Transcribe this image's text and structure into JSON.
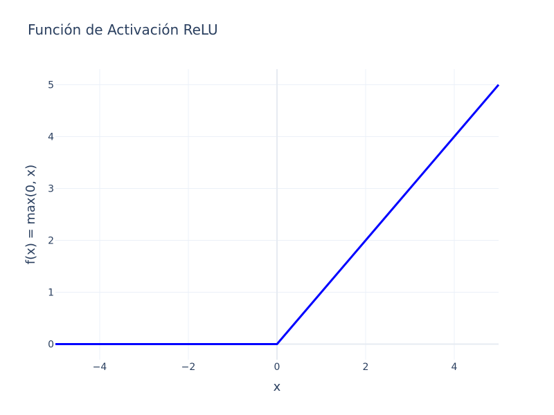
{
  "chart_data": {
    "type": "line",
    "title": "Función de Activación ReLU",
    "xlabel": "x",
    "ylabel": "f(x) = max(0, x)",
    "xlim": [
      -5,
      5
    ],
    "ylim": [
      -0.3,
      5.3
    ],
    "x_ticks": [
      -4,
      -2,
      0,
      2,
      4
    ],
    "x_tick_labels": [
      "−4",
      "−2",
      "0",
      "2",
      "4"
    ],
    "y_ticks": [
      0,
      1,
      2,
      3,
      4,
      5
    ],
    "y_tick_labels": [
      "0",
      "1",
      "2",
      "3",
      "4",
      "5"
    ],
    "grid": true,
    "series": [
      {
        "color": "#0000ff",
        "x": [
          -5,
          -4,
          -3,
          -2,
          -1,
          0,
          0.05,
          1,
          2,
          3,
          4,
          5
        ],
        "y": [
          0,
          0,
          0,
          0,
          0,
          0,
          0.05,
          1,
          2,
          3,
          4,
          5
        ]
      }
    ]
  }
}
